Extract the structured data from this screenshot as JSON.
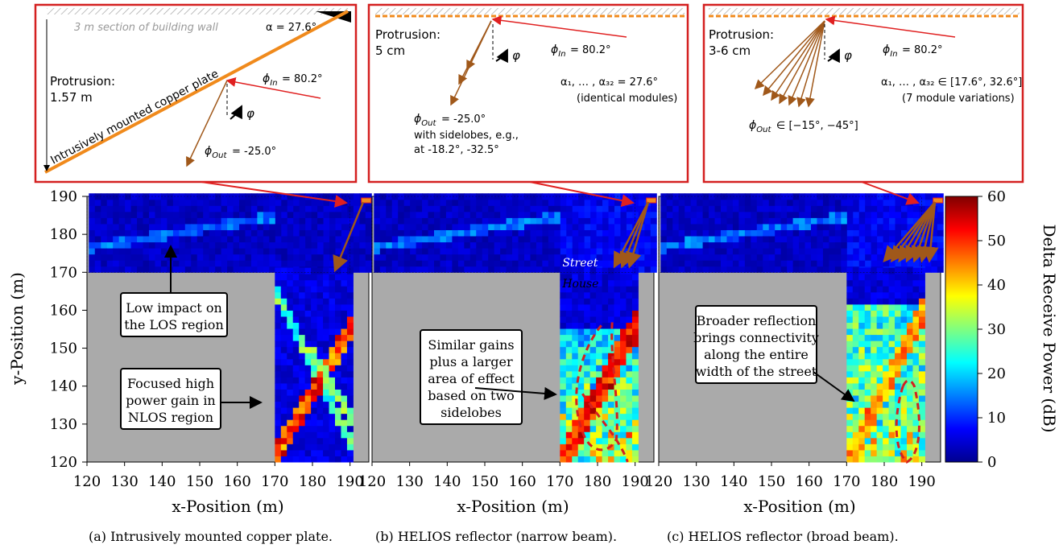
{
  "colorbar": {
    "title": "Delta Receive Power (dB)",
    "ticks": [
      "0",
      "10",
      "20",
      "30",
      "40",
      "50",
      "60"
    ],
    "range": [
      0,
      60
    ]
  },
  "map_labels": {
    "street": "Street",
    "house": "House"
  },
  "panels": [
    {
      "caption": "(a) Intrusively mounted copper plate.",
      "xlabel": "x-Position (m)",
      "ylabel": "y-Position (m)",
      "xticks": [
        "120",
        "130",
        "140",
        "150",
        "160",
        "170",
        "180",
        "190"
      ],
      "yticks": [
        "190",
        "180",
        "170",
        "160",
        "150",
        "140",
        "130",
        "120"
      ],
      "inset": {
        "wall_label": "3 m section of building wall",
        "alpha": "α = 27.6°",
        "protrusion_label": "Protrusion:",
        "protrusion_value": "1.57 m",
        "plate_label": "Intrusively mounted copper plate",
        "phi_in": "= 80.2°",
        "phi_out": "= -25.0°",
        "phi": "φ"
      },
      "annotations": [
        {
          "text": [
            "Low impact on",
            "the LOS region"
          ]
        },
        {
          "text": [
            "Focused high",
            "power gain in",
            "NLOS region"
          ]
        }
      ]
    },
    {
      "caption": "(b) HELIOS reflector (narrow beam).",
      "xlabel": "x-Position (m)",
      "xticks": [
        "120",
        "130",
        "140",
        "150",
        "160",
        "170",
        "180",
        "190"
      ],
      "inset": {
        "protrusion_label": "Protrusion:",
        "protrusion_value": "5 cm",
        "phi_in": "= 80.2°",
        "alpha": "α₁, … , α₃₂ = 27.6°",
        "modules": "(identical modules)",
        "phi_out": "= -25.0°",
        "sidelobes_1": "with sidelobes, e.g.,",
        "sidelobes_2": "at -18.2°, -32.5°",
        "phi": "φ"
      },
      "annotations": [
        {
          "text": [
            "Similar gains",
            "plus a larger",
            "area of effect",
            "based on two",
            "sidelobes"
          ]
        }
      ]
    },
    {
      "caption": "(c) HELIOS reflector (broad beam).",
      "xlabel": "x-Position (m)",
      "xticks": [
        "120",
        "130",
        "140",
        "150",
        "160",
        "170",
        "180",
        "190"
      ],
      "inset": {
        "protrusion_label": "Protrusion:",
        "protrusion_value": "3-6 cm",
        "phi_in": "= 80.2°",
        "alpha": "α₁, … , α₃₂ ∈ [17.6°, 32.6°]",
        "modules": "(7 module variations)",
        "phi_out": "∈ [−15°, −45°]",
        "phi": "φ"
      },
      "annotations": [
        {
          "text": [
            "Broader reflection",
            "brings connectivity",
            "along the entire",
            "width of the street"
          ]
        }
      ]
    }
  ],
  "chart_data": {
    "type": "heatmap",
    "x_range": [
      120,
      195
    ],
    "y_range": [
      120,
      190
    ],
    "colorbar_range": [
      0,
      60
    ],
    "colorbar_label": "Delta Receive Power (dB)",
    "regions": {
      "street_y": [
        170,
        190
      ],
      "side_street_x": [
        170,
        190
      ]
    },
    "panels": [
      "(a) Intrusively mounted copper plate.",
      "(b) HELIOS reflector (narrow beam).",
      "(c) HELIOS reflector (broad beam)."
    ]
  }
}
